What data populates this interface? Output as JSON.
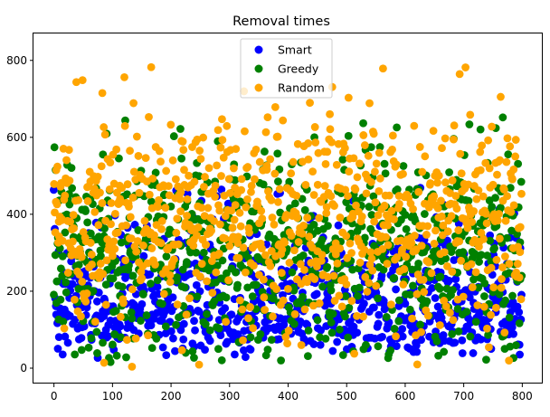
{
  "chart_data": {
    "type": "scatter",
    "title": "Removal times",
    "xlabel": "",
    "ylabel": "",
    "xlim": [
      -35,
      835
    ],
    "ylim": [
      -40,
      870
    ],
    "xticks": [
      0,
      100,
      200,
      300,
      400,
      500,
      600,
      700,
      800
    ],
    "yticks": [
      0,
      200,
      400,
      600,
      800
    ],
    "grid": false,
    "legend_position": "top-center",
    "series": [
      {
        "name": "Smart",
        "color": "#0000ff",
        "trend": {
          "points": [
            [
              0,
              230
            ],
            [
              800,
              230
            ]
          ],
          "spread": [
            0,
            470
          ]
        }
      },
      {
        "name": "Greedy",
        "color": "#008000",
        "trend": {
          "points": [
            [
              0,
              320
            ],
            [
              800,
              320
            ]
          ],
          "spread": [
            15,
            780
          ]
        }
      },
      {
        "name": "Random",
        "color": "#ffa500",
        "trend": {
          "points": [
            [
              0,
              400
            ],
            [
              800,
              400
            ]
          ],
          "spread": [
            0,
            800
          ]
        }
      }
    ],
    "points_per_series": 800
  }
}
